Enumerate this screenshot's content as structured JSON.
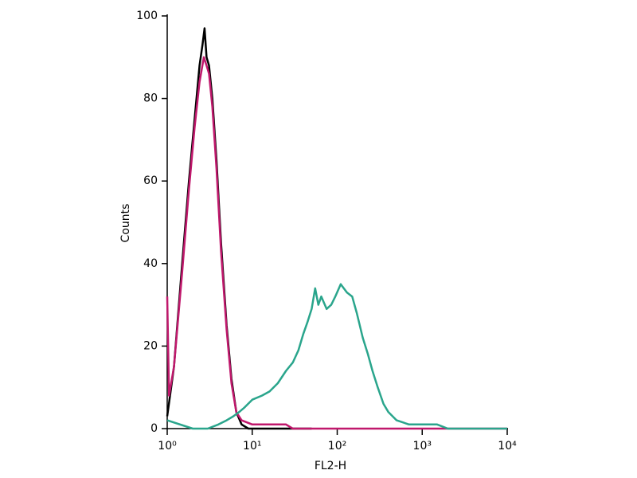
{
  "chart_data": {
    "type": "line",
    "x_label": "FL2-H",
    "y_label": "Counts",
    "xscale": "log",
    "xlim": [
      1,
      10000
    ],
    "xticks": [
      {
        "value": 1,
        "label": "10⁰"
      },
      {
        "value": 10,
        "label": "10¹"
      },
      {
        "value": 100,
        "label": "10²"
      },
      {
        "value": 1000,
        "label": "10³"
      },
      {
        "value": 10000,
        "label": "10⁴"
      }
    ],
    "ylim": [
      0,
      100
    ],
    "yticks": [
      0,
      20,
      40,
      60,
      80,
      100
    ],
    "series": [
      {
        "color": "#000000",
        "x": [
          1,
          1.2,
          1.5,
          1.8,
          2.1,
          2.4,
          2.6,
          2.75,
          2.9,
          3.1,
          3.4,
          3.8,
          4.3,
          5,
          5.7,
          6.5,
          7.5,
          9,
          12,
          20,
          50
        ],
        "values": [
          3,
          15,
          40,
          60,
          75,
          88,
          93,
          97,
          90,
          88,
          80,
          65,
          45,
          25,
          12,
          4,
          1,
          0,
          0,
          0,
          0
        ]
      },
      {
        "color": "#c0186c",
        "x": [
          1,
          1.05,
          1.2,
          1.5,
          1.8,
          2.1,
          2.4,
          2.7,
          2.9,
          3.1,
          3.4,
          3.8,
          4.3,
          5,
          5.7,
          6.5,
          7.5,
          10,
          15,
          25,
          30,
          100,
          10000
        ],
        "values": [
          32,
          8,
          15,
          38,
          58,
          73,
          84,
          90,
          88,
          86,
          78,
          63,
          43,
          24,
          11,
          4,
          2,
          1,
          1,
          1,
          0,
          0,
          0
        ]
      },
      {
        "color": "#2aa58c",
        "x": [
          1,
          2,
          3,
          4,
          5,
          6,
          7,
          8,
          10,
          13,
          16,
          20,
          25,
          30,
          35,
          40,
          45,
          50,
          55,
          60,
          65,
          75,
          85,
          95,
          110,
          130,
          150,
          170,
          200,
          230,
          260,
          300,
          350,
          400,
          500,
          700,
          1000,
          1500,
          2000,
          10000
        ],
        "values": [
          2,
          0,
          0,
          1,
          2,
          3,
          4,
          5,
          7,
          8,
          9,
          11,
          14,
          16,
          19,
          23,
          26,
          29,
          34,
          30,
          32,
          29,
          30,
          32,
          35,
          33,
          32,
          28,
          22,
          18,
          14,
          10,
          6,
          4,
          2,
          1,
          1,
          1,
          0,
          0
        ]
      }
    ]
  }
}
